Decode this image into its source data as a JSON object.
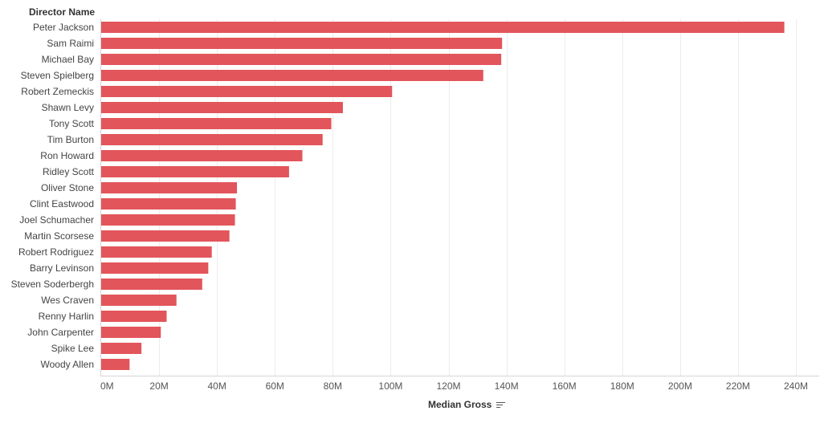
{
  "chart_data": {
    "type": "bar",
    "orientation": "horizontal",
    "row_header": "Director Name",
    "xlabel": "Median Gross",
    "categories": [
      "Peter Jackson",
      "Sam Raimi",
      "Michael Bay",
      "Steven Spielberg",
      "Robert Zemeckis",
      "Shawn Levy",
      "Tony Scott",
      "Tim Burton",
      "Ron Howard",
      "Ridley Scott",
      "Oliver Stone",
      "Clint Eastwood",
      "Joel Schumacher",
      "Martin Scorsese",
      "Robert Rodriguez",
      "Barry Levinson",
      "Steven Soderbergh",
      "Wes Craven",
      "Renny Harlin",
      "John Carpenter",
      "Spike Lee",
      "Woody Allen"
    ],
    "values": [
      236000000,
      138500000,
      138200000,
      132000000,
      100500000,
      83500000,
      79500000,
      76500000,
      69500000,
      64900000,
      46900000,
      46500000,
      46200000,
      44300000,
      38200000,
      37000000,
      34900000,
      26000000,
      22600000,
      20600000,
      13900000,
      9800000
    ],
    "xlim": [
      0,
      240000000
    ],
    "ticks": [
      "0M",
      "20M",
      "40M",
      "60M",
      "80M",
      "100M",
      "120M",
      "140M",
      "160M",
      "180M",
      "200M",
      "220M",
      "240M"
    ],
    "tick_values": [
      0,
      20000000,
      40000000,
      60000000,
      80000000,
      100000000,
      120000000,
      140000000,
      160000000,
      180000000,
      200000000,
      220000000,
      240000000
    ],
    "grid": true,
    "bar_color": "#e2555b",
    "sort_icon": "sort-descending-icon"
  }
}
